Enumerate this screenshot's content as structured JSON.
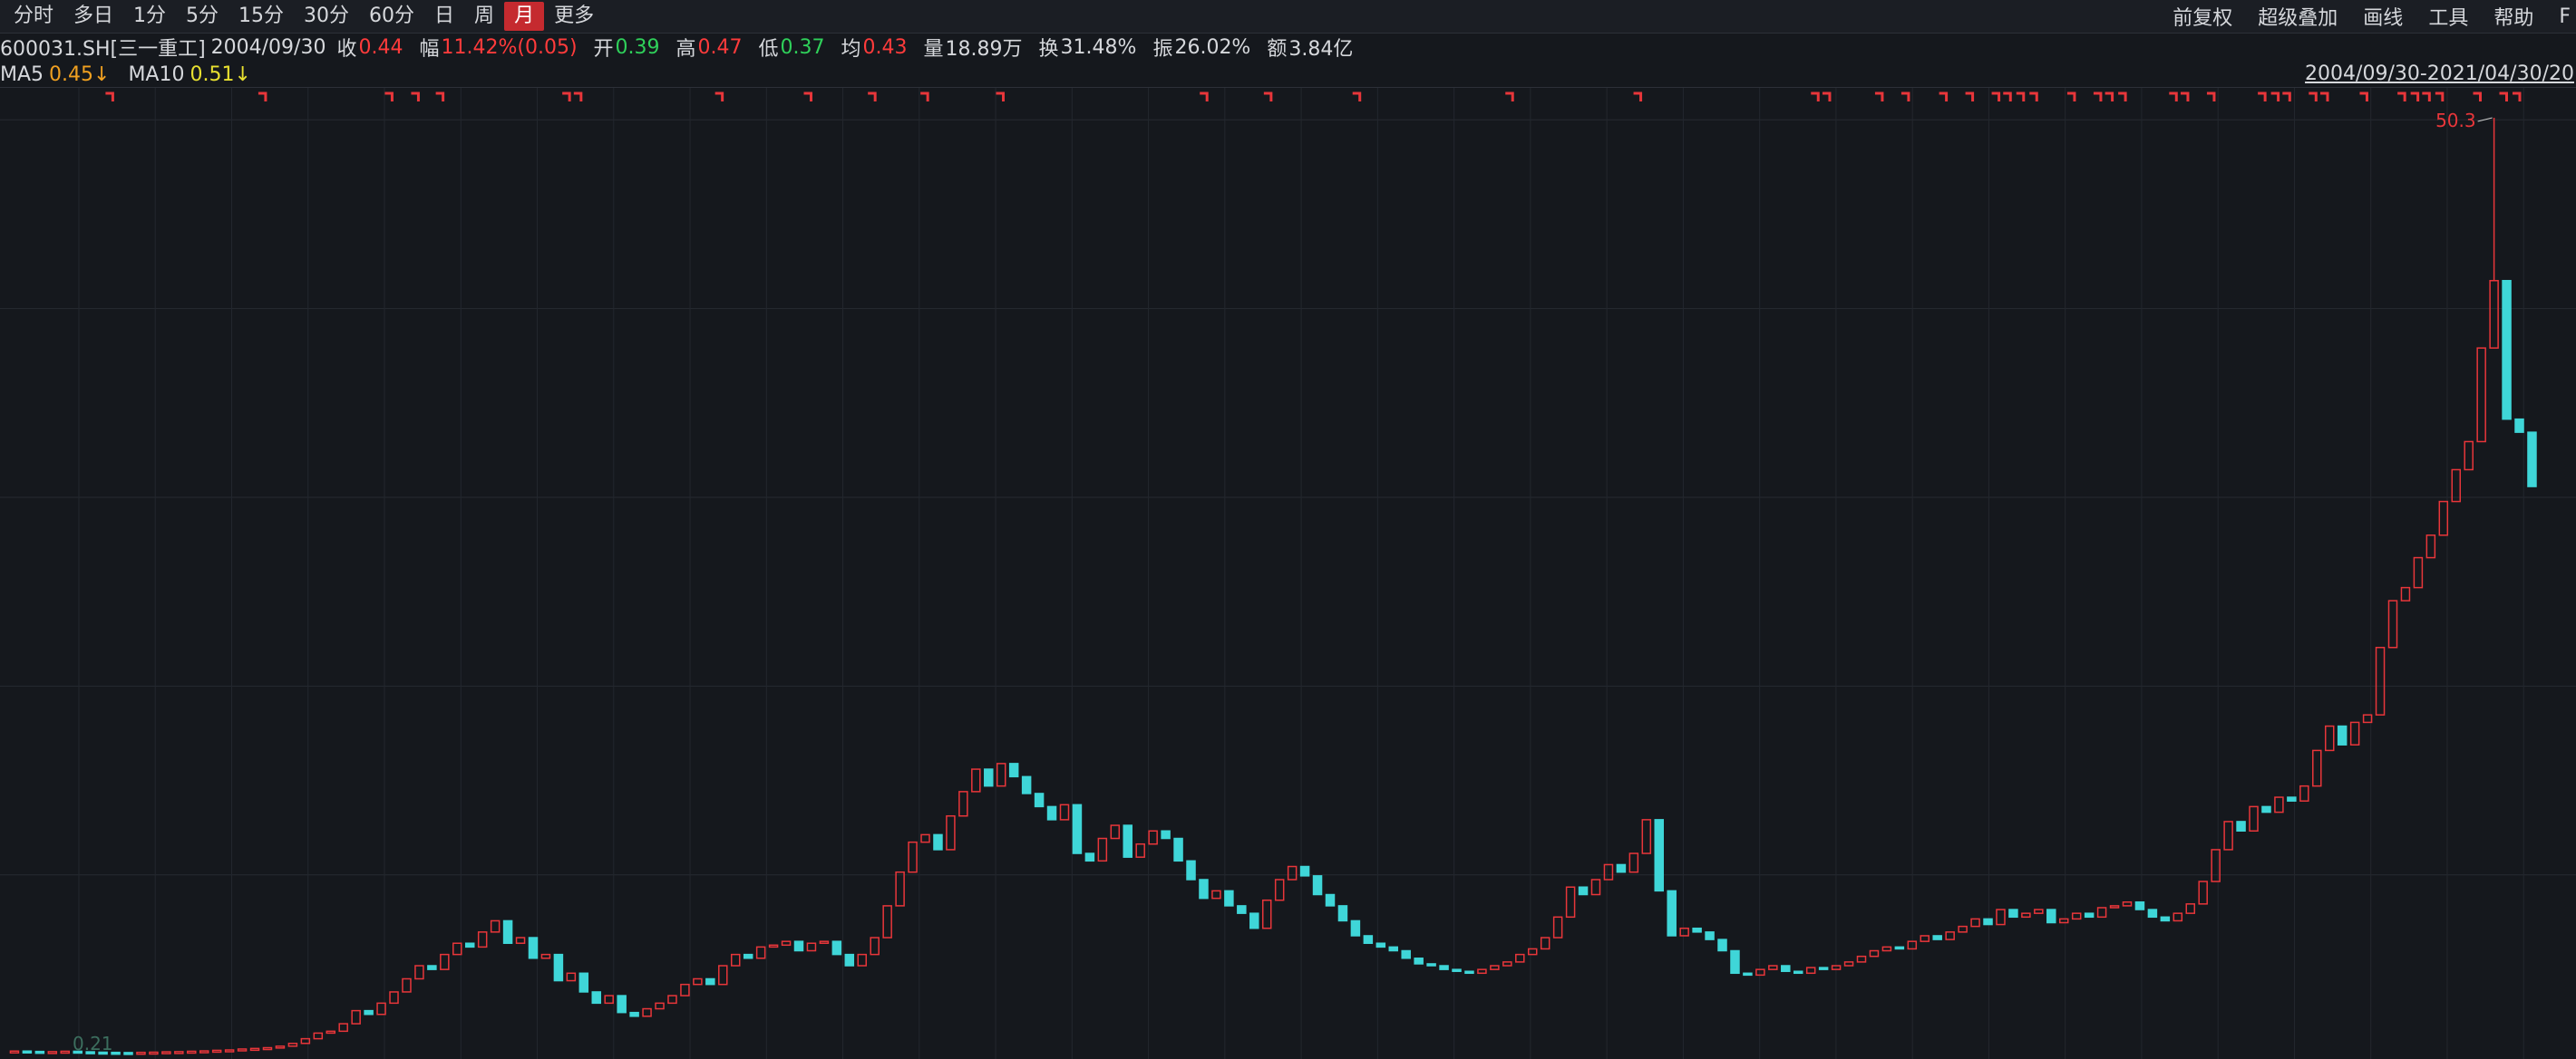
{
  "toolbar": {
    "left": [
      "分时",
      "多日",
      "1分",
      "5分",
      "15分",
      "30分",
      "60分",
      "日",
      "周",
      "月",
      "更多"
    ],
    "active": "月",
    "right": [
      "前复权",
      "超级叠加",
      "画线",
      "工具",
      "帮助",
      "F"
    ]
  },
  "info": {
    "code": "600031.SH[三一重工]",
    "date": "2004/09/30",
    "fields": [
      {
        "label": "收",
        "value": 0.44,
        "color": "#ff3b3b"
      },
      {
        "label": "幅",
        "value": "11.42%(0.05)",
        "color": "#ff3b3b"
      },
      {
        "label": "开",
        "value": 0.39,
        "color": "#2fd05a"
      },
      {
        "label": "高",
        "value": 0.47,
        "color": "#ff3b3b"
      },
      {
        "label": "低",
        "value": 0.37,
        "color": "#2fd05a"
      },
      {
        "label": "均",
        "value": 0.43,
        "color": "#ff3b3b"
      },
      {
        "label": "量",
        "value": "18.89万",
        "color": "#d6d8dc"
      },
      {
        "label": "换",
        "value": "31.48%",
        "color": "#d6d8dc"
      },
      {
        "label": "振",
        "value": "26.02%",
        "color": "#d6d8dc"
      },
      {
        "label": "额",
        "value": "3.84亿",
        "color": "#d6d8dc"
      }
    ]
  },
  "ma": [
    {
      "name": "MA5",
      "value": "0.45↓",
      "color": "#f0a020"
    },
    {
      "name": "MA10",
      "value": "0.51↓",
      "color": "#e8e030"
    }
  ],
  "range": "2004/09/30-2021/04/30/20",
  "chart_data": {
    "type": "candlestick",
    "ylim": [
      0.21,
      50.3
    ],
    "min_label": 0.21,
    "max_label": 50.3,
    "up_color": "#e8363a",
    "down_color": "#3fd6d8",
    "grid": true,
    "series": [
      {
        "name": "600031.SH",
        "values": [
          0.44,
          0.42,
          0.4,
          0.41,
          0.43,
          0.4,
          0.38,
          0.37,
          0.36,
          0.35,
          0.37,
          0.38,
          0.4,
          0.41,
          0.43,
          0.45,
          0.48,
          0.5,
          0.55,
          0.58,
          0.62,
          0.7,
          0.85,
          1.1,
          1.4,
          1.5,
          1.9,
          2.6,
          2.4,
          3.0,
          3.6,
          4.3,
          5.0,
          4.8,
          5.6,
          6.2,
          6.0,
          6.8,
          7.4,
          6.2,
          6.5,
          5.4,
          5.6,
          4.2,
          4.6,
          3.6,
          3.0,
          3.4,
          2.5,
          2.3,
          2.7,
          3.0,
          3.4,
          4.0,
          4.3,
          4.0,
          5.0,
          5.6,
          5.4,
          6.0,
          6.1,
          6.3,
          5.8,
          6.2,
          6.3,
          5.6,
          5.0,
          5.6,
          6.5,
          8.2,
          10.0,
          11.6,
          12.0,
          11.2,
          13.0,
          14.3,
          15.5,
          14.6,
          15.8,
          15.1,
          14.2,
          13.5,
          12.8,
          13.6,
          11.0,
          10.6,
          11.8,
          12.5,
          10.8,
          11.5,
          12.2,
          11.8,
          10.6,
          9.6,
          8.6,
          9.0,
          8.2,
          7.8,
          7.0,
          8.5,
          9.6,
          10.3,
          9.8,
          8.8,
          8.2,
          7.4,
          6.6,
          6.2,
          6.0,
          5.8,
          5.4,
          5.1,
          5.0,
          4.8,
          4.7,
          4.6,
          4.8,
          5.0,
          5.2,
          5.6,
          5.9,
          6.5,
          7.6,
          9.2,
          8.8,
          9.6,
          10.4,
          10.0,
          11.0,
          12.8,
          9.0,
          6.6,
          7.0,
          6.8,
          6.4,
          5.8,
          4.6,
          4.5,
          4.8,
          5.0,
          4.7,
          4.6,
          4.9,
          4.8,
          5.0,
          5.2,
          5.5,
          5.8,
          6.0,
          5.9,
          6.3,
          6.6,
          6.4,
          6.8,
          7.1,
          7.5,
          7.2,
          8.0,
          7.6,
          7.8,
          8.0,
          7.3,
          7.5,
          7.8,
          7.6,
          8.1,
          8.2,
          8.4,
          8.0,
          7.6,
          7.4,
          7.8,
          8.3,
          9.5,
          11.2,
          12.7,
          12.2,
          13.5,
          13.2,
          14.0,
          13.8,
          14.6,
          16.5,
          17.8,
          16.8,
          18.0,
          18.4,
          22.0,
          24.5,
          25.2,
          26.8,
          28.0,
          29.8,
          31.5,
          33.0,
          38.0,
          41.6,
          34.2,
          33.5,
          30.6
        ]
      }
    ]
  }
}
